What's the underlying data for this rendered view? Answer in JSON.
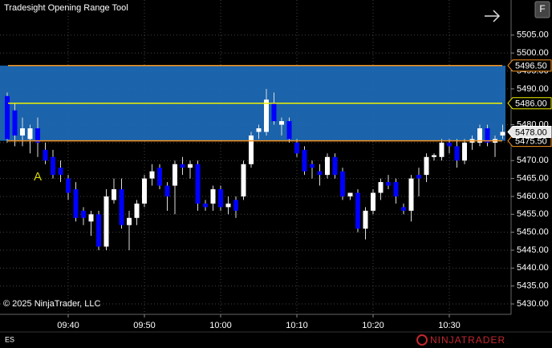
{
  "header": {
    "title": "Tradesight Opening Range Tool",
    "button": "F"
  },
  "footer": {
    "instrument": "ES",
    "copyright": "© 2025 NinjaTrader, LLC",
    "brand": "NINJATRADER"
  },
  "chart_data": {
    "type": "candlestick",
    "categories": [
      null,
      null,
      null,
      null,
      null,
      null,
      null,
      null,
      "09:40",
      null,
      null,
      null,
      null,
      null,
      null,
      null,
      null,
      null,
      "09:50",
      null,
      null,
      null,
      null,
      null,
      null,
      null,
      null,
      null,
      "10:00",
      null,
      null,
      null,
      null,
      null,
      null,
      null,
      null,
      null,
      "10:10",
      null,
      null,
      null,
      null,
      null,
      null,
      null,
      null,
      null,
      "10:20",
      null,
      null,
      null,
      null,
      null,
      null,
      null,
      null,
      null,
      "10:30",
      null,
      null,
      null,
      null,
      null,
      null,
      null
    ],
    "open": [
      5488,
      5484,
      5477,
      5476,
      5479,
      5473,
      5471,
      5468,
      5465,
      5462,
      5456,
      5453,
      5455,
      5446,
      5459,
      5462,
      5452,
      5454,
      5458,
      5465,
      5468,
      5463,
      5463,
      5469,
      5468,
      5469,
      5458,
      5458,
      5462,
      5457,
      5459,
      5460,
      5469,
      5478,
      5478,
      5486,
      5480,
      5481,
      5475,
      5473,
      5469,
      5467,
      5466,
      5471,
      5467,
      5460,
      5461,
      5451,
      5456,
      5461,
      5464,
      5464,
      5457,
      5456,
      5466,
      5466,
      5471,
      5471,
      5475,
      5474,
      5470,
      5475,
      5475,
      5479,
      5475,
      5477
    ],
    "high": [
      5489,
      5486,
      5482,
      5480,
      5482,
      5475,
      5473,
      5470,
      5466,
      5464,
      5457,
      5456,
      5456,
      5462,
      5465,
      5465,
      5456,
      5459,
      5466,
      5469,
      5469,
      5464,
      5470,
      5471,
      5470,
      5470,
      5459,
      5463,
      5463,
      5460,
      5460,
      5470,
      5478,
      5480,
      5490,
      5489,
      5482,
      5482,
      5476,
      5474,
      5470,
      5469,
      5472,
      5472,
      5468,
      5461,
      5462,
      5457,
      5462,
      5465,
      5466,
      5465,
      5458,
      5466,
      5468,
      5472,
      5472,
      5476,
      5476,
      5476,
      5476,
      5477,
      5480,
      5480,
      5477,
      5480
    ],
    "low": [
      5475,
      5474,
      5474,
      5472,
      5471,
      5469,
      5465,
      5464,
      5459,
      5453,
      5452,
      5449,
      5445,
      5445,
      5458,
      5451,
      5445,
      5452,
      5457,
      5463,
      5462,
      5456,
      5455,
      5466,
      5465,
      5456,
      5456,
      5456,
      5456,
      5455,
      5454,
      5459,
      5468,
      5476,
      5477,
      5480,
      5477,
      5475,
      5471,
      5466,
      5465,
      5463,
      5465,
      5465,
      5459,
      5459,
      5450,
      5448,
      5455,
      5459,
      5462,
      5458,
      5455,
      5453,
      5460,
      5464,
      5470,
      5470,
      5472,
      5468,
      5469,
      5473,
      5474,
      5474,
      5471,
      5476
    ],
    "close": [
      5476,
      5477,
      5479,
      5479,
      5475,
      5470,
      5466,
      5466,
      5461,
      5454,
      5454,
      5455,
      5446,
      5460,
      5462,
      5452,
      5454,
      5458,
      5465,
      5467,
      5463,
      5460,
      5469,
      5468,
      5469,
      5458,
      5457,
      5462,
      5457,
      5458,
      5456,
      5469,
      5477,
      5479,
      5487,
      5481,
      5481,
      5476,
      5472,
      5467,
      5468,
      5466,
      5471,
      5466,
      5460,
      5461,
      5451,
      5456,
      5461,
      5464,
      5463,
      5460,
      5456,
      5465,
      5465,
      5471,
      5471.5,
      5475,
      5474,
      5470,
      5475,
      5476,
      5479,
      5475,
      5476,
      5478
    ],
    "up_color": "#ffffff",
    "down_color": "#0000ff",
    "ylim": [
      5427.1,
      5514.8
    ],
    "yticks": [
      {
        "value": 5430,
        "label": "5430.00"
      },
      {
        "value": 5435,
        "label": "5435.00"
      },
      {
        "value": 5440,
        "label": "5440.00"
      },
      {
        "value": 5445,
        "label": "5445.00"
      },
      {
        "value": 5450,
        "label": "5450.00"
      },
      {
        "value": 5455,
        "label": "5455.00"
      },
      {
        "value": 5460,
        "label": "5460.00"
      },
      {
        "value": 5465,
        "label": "5465.00"
      },
      {
        "value": 5470,
        "label": "5470.00"
      },
      {
        "value": 5475,
        "label": "5475.00"
      },
      {
        "value": 5480,
        "label": "5480.00"
      },
      {
        "value": 5485,
        "label": "5485.00"
      },
      {
        "value": 5490,
        "label": "5490.00"
      },
      {
        "value": 5495,
        "label": "5495.00"
      },
      {
        "value": 5500,
        "label": "5500.00"
      },
      {
        "value": 5505,
        "label": "5505.00"
      }
    ],
    "grid": true,
    "range_color": "#1e6ebe",
    "levels": [
      {
        "value": 5496.5,
        "label": "5496.50",
        "color": "#f7931e"
      },
      {
        "value": 5486,
        "label": "5486.00",
        "color": "#f0f000"
      },
      {
        "value": 5475.5,
        "label": "5475.50",
        "color": "#f7931e"
      }
    ],
    "last_price": {
      "value": 5478,
      "label": "5478.00"
    },
    "annotation": {
      "text": "A",
      "color": "#d4d400"
    }
  }
}
